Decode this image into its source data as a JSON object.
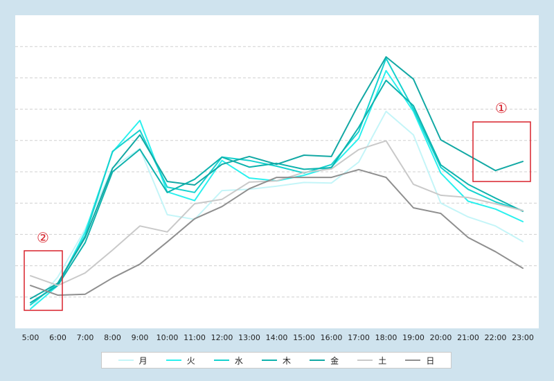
{
  "chart_data": {
    "type": "line",
    "title": "",
    "xlabel": "",
    "ylabel": "",
    "grid": true,
    "legend_position": "bottom",
    "ylim": [
      0,
      100
    ],
    "categories": [
      "5:00",
      "6:00",
      "7:00",
      "8:00",
      "9:00",
      "10:00",
      "11:00",
      "12:00",
      "13:00",
      "14:00",
      "15:00",
      "16:00",
      "17:00",
      "18:00",
      "19:00",
      "20:00",
      "21:00",
      "22:00",
      "23:00"
    ],
    "series": [
      {
        "name": "月",
        "color": "#c4f5f8",
        "values": [
          6.2,
          16.4,
          31.7,
          51.3,
          57.4,
          36.3,
          34.8,
          44.0,
          44.4,
          45.4,
          46.6,
          46.4,
          53.1,
          69.3,
          61.8,
          40.0,
          35.6,
          32.7,
          27.7
        ]
      },
      {
        "name": "火",
        "color": "#2af0ee",
        "values": [
          6.2,
          13.7,
          30.8,
          56.3,
          66.4,
          43.6,
          40.8,
          53.6,
          48.0,
          47.1,
          48.9,
          51.5,
          60.6,
          82.3,
          69.3,
          49.6,
          40.6,
          38.1,
          34.1
        ]
      },
      {
        "name": "水",
        "color": "#15d2cf",
        "values": [
          7.5,
          14.4,
          29.6,
          56.5,
          63.3,
          45.1,
          43.4,
          54.7,
          53.6,
          51.8,
          49.6,
          52.3,
          62.8,
          86.2,
          70.0,
          51.4,
          44.4,
          40.4,
          37.6
        ]
      },
      {
        "name": "木",
        "color": "#0eb2ad",
        "values": [
          8.2,
          13.7,
          27.4,
          50.0,
          57.2,
          43.4,
          47.6,
          54.7,
          51.5,
          52.7,
          50.8,
          51.3,
          64.2,
          79.2,
          71.1,
          52.2,
          46.0,
          41.6,
          37.4
        ]
      },
      {
        "name": "金",
        "color": "#12a8a4",
        "values": [
          9.5,
          14.4,
          29.0,
          51.1,
          61.8,
          46.9,
          45.8,
          52.4,
          54.9,
          52.4,
          55.3,
          54.9,
          71.6,
          86.7,
          79.6,
          60.2,
          55.3,
          50.4,
          53.3
        ]
      },
      {
        "name": "土",
        "color": "#c9c9c9",
        "values": [
          16.8,
          13.7,
          17.7,
          25.0,
          32.7,
          30.8,
          39.8,
          41.2,
          46.7,
          47.1,
          49.8,
          50.9,
          57.1,
          59.9,
          46.0,
          42.5,
          41.8,
          39.8,
          37.6
        ]
      },
      {
        "name": "日",
        "color": "#8f8f8f",
        "values": [
          13.7,
          10.6,
          10.9,
          16.1,
          20.5,
          27.6,
          35.0,
          38.9,
          44.6,
          48.2,
          48.2,
          48.2,
          50.7,
          48.2,
          38.5,
          36.7,
          29.0,
          24.5,
          19.2
        ]
      }
    ],
    "annotations": [
      {
        "label": "①",
        "target": "金 (21:00–23:00)"
      },
      {
        "label": "②",
        "target": "all series (5:00–6:00)"
      }
    ]
  }
}
